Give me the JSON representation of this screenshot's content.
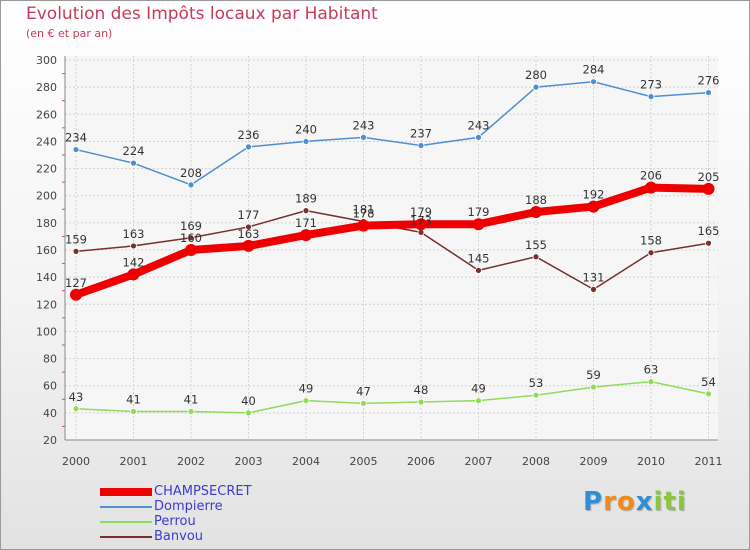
{
  "header": {
    "title": "Evolution des Impôts locaux par Habitant",
    "subtitle": "(en € et par an)"
  },
  "logo": {
    "letters": [
      "P",
      "r",
      "o",
      "x",
      "i",
      "t",
      "i"
    ],
    "colors": [
      "#2d8fd6",
      "#f08a1c",
      "#f08a1c",
      "#2d8fd6",
      "#8cc63f",
      "#8cc63f",
      "#8cc63f"
    ]
  },
  "chart_data": {
    "type": "line",
    "x": [
      "2000",
      "2001",
      "2002",
      "2003",
      "2004",
      "2005",
      "2006",
      "2007",
      "2008",
      "2009",
      "2010",
      "2011"
    ],
    "ylim": [
      20,
      300
    ],
    "yticks": [
      20,
      40,
      60,
      80,
      100,
      120,
      140,
      160,
      180,
      200,
      220,
      240,
      260,
      280,
      300
    ],
    "grid": true,
    "legend_position": "bottom-left",
    "series": [
      {
        "name": "CHAMPSECRET",
        "color": "#ee0000",
        "values": [
          127,
          142,
          160,
          163,
          171,
          178,
          179,
          179,
          188,
          192,
          206,
          205
        ]
      },
      {
        "name": "Dompierre",
        "color": "#4d8fd0",
        "values": [
          234,
          224,
          208,
          236,
          240,
          243,
          237,
          243,
          280,
          284,
          273,
          276
        ]
      },
      {
        "name": "Perrou",
        "color": "#8fdc5a",
        "values": [
          43,
          41,
          41,
          40,
          49,
          47,
          48,
          49,
          53,
          59,
          63,
          54
        ]
      },
      {
        "name": "Banvou",
        "color": "#7a2e2e",
        "values": [
          159,
          163,
          169,
          177,
          189,
          181,
          173,
          145,
          155,
          131,
          158,
          165
        ]
      }
    ]
  }
}
